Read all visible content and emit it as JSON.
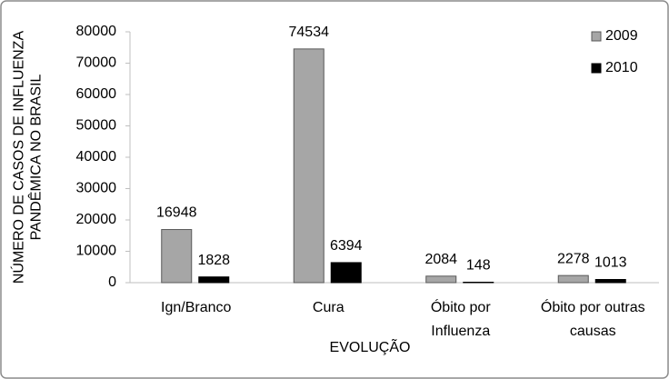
{
  "chart_data": {
    "type": "bar",
    "categories": [
      "Ign/Branco",
      "Cura",
      "Óbito por Influenza",
      "Óbito por outras causas"
    ],
    "series": [
      {
        "name": "2009",
        "color": "#a6a6a6",
        "values": [
          16948,
          74534,
          2084,
          2278
        ]
      },
      {
        "name": "2010",
        "color": "#000000",
        "values": [
          1828,
          6394,
          148,
          1013
        ]
      }
    ],
    "ylim": [
      0,
      80000
    ],
    "yticks": [
      0,
      10000,
      20000,
      30000,
      40000,
      50000,
      60000,
      70000,
      80000
    ],
    "xlabel": "EVOLUÇÃO",
    "ylabel": "NÚMERO DE CASOS DE INFLUENZA PANDÊMICA NO BRASIL",
    "legend": "top-right"
  }
}
